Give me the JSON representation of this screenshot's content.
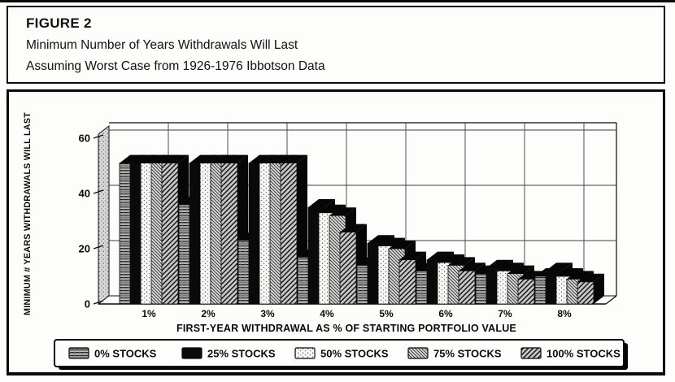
{
  "figure": {
    "label": "FIGURE 2",
    "title_line1": "Minimum Number of Years Withdrawals Will Last",
    "title_line2": "Assuming Worst Case from 1926-1976 Ibbotson Data"
  },
  "colors": {
    "ink": "#0a0a0a",
    "paper": "#fdfdfb"
  },
  "chart_data": {
    "type": "bar",
    "style": "3d-grouped-monochrome-patterns",
    "categories": [
      "1%",
      "2%",
      "3%",
      "4%",
      "5%",
      "6%",
      "7%",
      "8%"
    ],
    "series": [
      {
        "name": "0% STOCKS",
        "pattern": "horizontal-hatch",
        "values": [
          51,
          36,
          23,
          17,
          14,
          12,
          11,
          10
        ]
      },
      {
        "name": "25% STOCKS",
        "pattern": "solid-black",
        "values": [
          51,
          51,
          51,
          35,
          22,
          16,
          13,
          12
        ]
      },
      {
        "name": "50% STOCKS",
        "pattern": "dotted-light",
        "values": [
          51,
          51,
          51,
          33,
          21,
          15,
          12,
          10
        ]
      },
      {
        "name": "75% STOCKS",
        "pattern": "diagonal-fine",
        "values": [
          51,
          51,
          51,
          32,
          20,
          14,
          11,
          9
        ]
      },
      {
        "name": "100% STOCKS",
        "pattern": "diagonal-coarse",
        "values": [
          51,
          51,
          51,
          26,
          16,
          12,
          9,
          8
        ]
      }
    ],
    "xlabel": "FIRST-YEAR WITHDRAWAL AS % OF STARTING PORTFOLIO VALUE",
    "ylabel": "MINIMUM # YEARS WITHDRAWALS WILL LAST",
    "yticks": [
      0,
      20,
      40,
      60
    ],
    "ylim": [
      0,
      60
    ],
    "grid": true,
    "legend_position": "bottom"
  }
}
